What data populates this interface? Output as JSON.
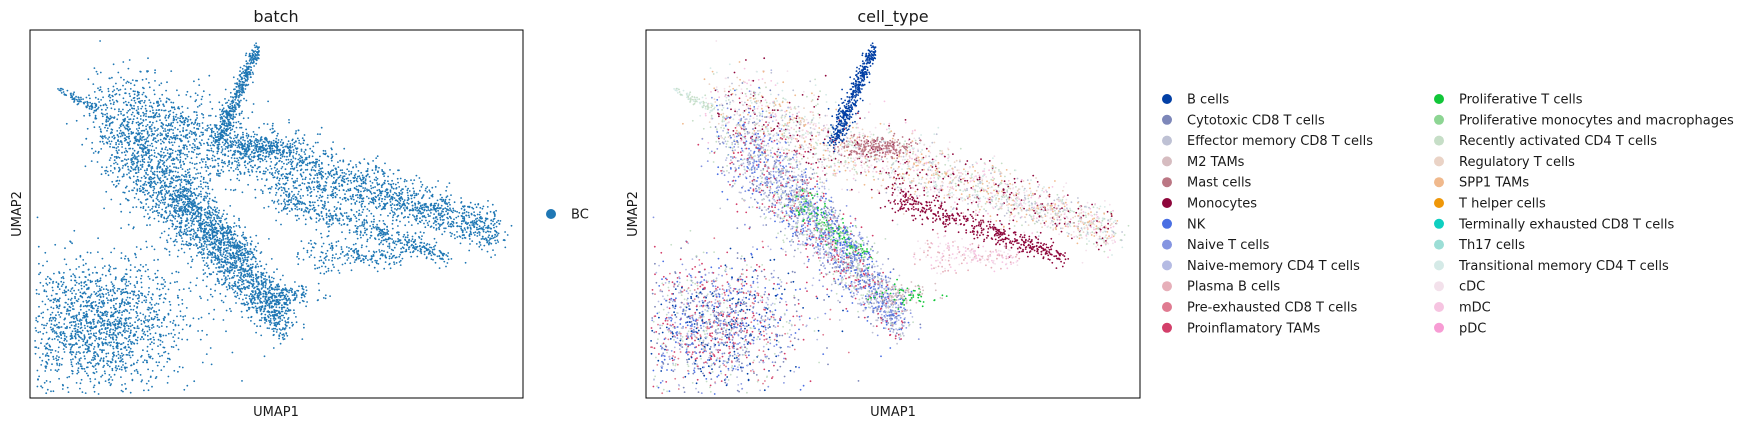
{
  "chart_data": [
    {
      "type": "scatter",
      "title": "batch",
      "xlabel": "UMAP1",
      "ylabel": "UMAP2",
      "ticks": "none",
      "grid": false,
      "legend_position": "right",
      "legend": [
        {
          "label": "BC",
          "color": "#1f77b4"
        }
      ],
      "shape": "UMAP embedding of all cells colored by batch (single batch)"
    },
    {
      "type": "scatter",
      "title": "cell_type",
      "xlabel": "UMAP1",
      "ylabel": "UMAP2",
      "ticks": "none",
      "grid": false,
      "legend_position": "right",
      "legend": [
        {
          "label": "B cells",
          "color": "#023fa5"
        },
        {
          "label": "Cytotoxic CD8 T cells",
          "color": "#7d87b9"
        },
        {
          "label": "Effector memory CD8 T cells",
          "color": "#bec1d4"
        },
        {
          "label": "M2 TAMs",
          "color": "#d6bcc0"
        },
        {
          "label": "Mast cells",
          "color": "#bb7784"
        },
        {
          "label": "Monocytes",
          "color": "#8e063b"
        },
        {
          "label": "NK",
          "color": "#4a6fe3"
        },
        {
          "label": "Naive T cells",
          "color": "#8595e1"
        },
        {
          "label": "Naive-memory CD4 T cells",
          "color": "#b5bbe3"
        },
        {
          "label": "Plasma B cells",
          "color": "#e6afb9"
        },
        {
          "label": "Pre-exhausted CD8 T cells",
          "color": "#e07b91"
        },
        {
          "label": "Proinflamatory TAMs",
          "color": "#d33f6a"
        },
        {
          "label": "Proliferative T cells",
          "color": "#11c638"
        },
        {
          "label": "Proliferative monocytes and macrophages",
          "color": "#8dd593"
        },
        {
          "label": "Recently activated CD4 T cells",
          "color": "#c6dec7"
        },
        {
          "label": "Regulatory T cells",
          "color": "#ead3c6"
        },
        {
          "label": "SPP1 TAMs",
          "color": "#f0b98d"
        },
        {
          "label": "T helper cells",
          "color": "#ef9708"
        },
        {
          "label": "Terminally exhausted CD8 T cells",
          "color": "#0fcfc0"
        },
        {
          "label": "Th17 cells",
          "color": "#9cded6"
        },
        {
          "label": "Transitional memory CD4 T cells",
          "color": "#d5eae7"
        },
        {
          "label": "cDC",
          "color": "#f3e1eb"
        },
        {
          "label": "mDC",
          "color": "#f6c4e1"
        },
        {
          "label": "pDC",
          "color": "#f79cd4"
        }
      ]
    }
  ]
}
